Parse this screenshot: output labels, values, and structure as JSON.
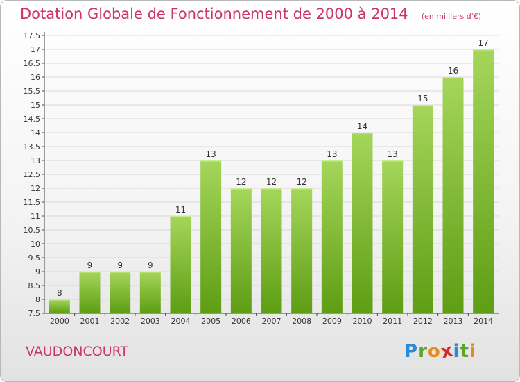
{
  "page": {
    "commune": "VAUDONCOURT",
    "logo_letters": [
      "P",
      "r",
      "o",
      "x",
      "i",
      "t",
      "i"
    ],
    "logo_colors": [
      "#2a8bd6",
      "#5aa52a",
      "#e88a1a",
      "#d62a2a",
      "#2a8bd6",
      "#5aa52a",
      "#e88a1a"
    ]
  },
  "chart_data": {
    "type": "bar",
    "title": "Dotation Globale de Fonctionnement de 2000 à 2014",
    "subtitle": "(en milliers d'€)",
    "categories": [
      "2000",
      "2001",
      "2002",
      "2003",
      "2004",
      "2005",
      "2006",
      "2007",
      "2008",
      "2009",
      "2010",
      "2011",
      "2012",
      "2013",
      "2014"
    ],
    "values": [
      8,
      9,
      9,
      9,
      11,
      13,
      12,
      12,
      12,
      13,
      14,
      13,
      15,
      16,
      17
    ],
    "yticks": [
      "7.5",
      "8",
      "8.5",
      "9",
      "9.5",
      "10",
      "10.5",
      "11",
      "11.5",
      "12",
      "12.5",
      "13",
      "13.5",
      "14",
      "14.5",
      "15",
      "15.5",
      "16",
      "16.5",
      "17",
      "17.5"
    ],
    "ylim": [
      7.5,
      17.5
    ],
    "grid": true,
    "colors": {
      "bar_top": "#a5d65a",
      "bar_bottom": "#5e9d14",
      "grid": "#d8d8d8",
      "title": "#cc3366",
      "axis": "#444444"
    }
  }
}
